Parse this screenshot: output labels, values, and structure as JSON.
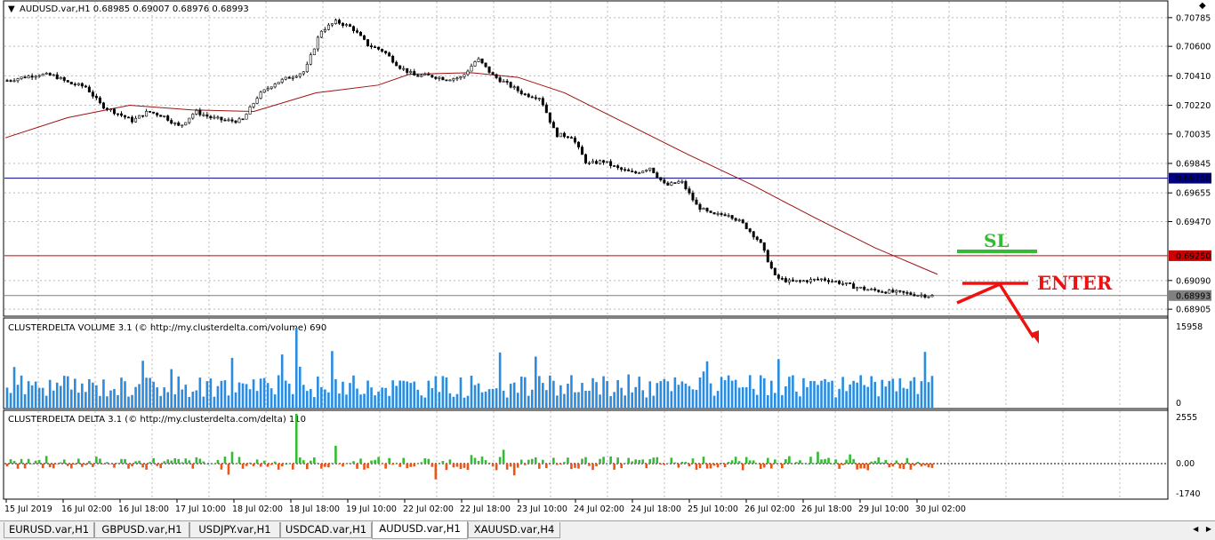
{
  "symbol_info": "AUDUSD.var,H1  0.68985 0.69007 0.68976 0.68993",
  "price_axis": [
    "0.70785",
    "0.70600",
    "0.70410",
    "0.70220",
    "0.70035",
    "0.69845",
    "0.69655",
    "0.69470",
    "0.69090",
    "0.68905"
  ],
  "hlines": [
    {
      "label": "0.69750",
      "value": 0.6975,
      "color": "#000080"
    },
    {
      "label": "0.69250",
      "value": 0.6925,
      "color": "#cc0000"
    },
    {
      "label": "0.68993",
      "value": 0.68993,
      "color": "#808080"
    }
  ],
  "annotations": {
    "sl": "SL",
    "enter": "ENTER"
  },
  "volume_panel": {
    "title": "CLUSTERDELTA VOLUME 3.1 (© http://my.clusterdelta.com/volume) 690",
    "max_label": "15958",
    "zero_label": "0"
  },
  "delta_panel": {
    "title": "CLUSTERDELTA DELTA 3.1 (© http://my.clusterdelta.com/delta) 110",
    "max_label": "2555",
    "zero_label": "0.00",
    "min_label": "-1740"
  },
  "time_axis": [
    "15 Jul 2019",
    "16 Jul 02:00",
    "16 Jul 18:00",
    "17 Jul 10:00",
    "18 Jul 02:00",
    "18 Jul 18:00",
    "19 Jul 10:00",
    "22 Jul 02:00",
    "22 Jul 18:00",
    "23 Jul 10:00",
    "24 Jul 02:00",
    "24 Jul 18:00",
    "25 Jul 10:00",
    "26 Jul 02:00",
    "26 Jul 18:00",
    "29 Jul 10:00",
    "30 Jul 02:00"
  ],
  "tabs": [
    {
      "label": "EURUSD.var,H1",
      "active": false
    },
    {
      "label": "GBPUSD.var,H1",
      "active": false
    },
    {
      "label": "USDJPY.var,H1",
      "active": false
    },
    {
      "label": "USDCAD.var,H1",
      "active": false
    },
    {
      "label": "AUDUSD.var,H1",
      "active": true
    },
    {
      "label": "XAUUSD.var,H4",
      "active": false
    }
  ],
  "chart_data": {
    "type": "candlestick",
    "symbol": "AUDUSD.var",
    "timeframe": "H1",
    "price_range": [
      0.6886,
      0.7083
    ],
    "price_close_path": [
      [
        0,
        0.7038
      ],
      [
        10,
        0.704
      ],
      [
        20,
        0.7042
      ],
      [
        30,
        0.7041
      ],
      [
        40,
        0.7036
      ],
      [
        50,
        0.7034
      ],
      [
        60,
        0.7022
      ],
      [
        70,
        0.7017
      ],
      [
        80,
        0.7012
      ],
      [
        90,
        0.7018
      ],
      [
        100,
        0.7015
      ],
      [
        110,
        0.7008
      ],
      [
        120,
        0.7018
      ],
      [
        130,
        0.7014
      ],
      [
        140,
        0.7012
      ],
      [
        150,
        0.7012
      ],
      [
        160,
        0.7028
      ],
      [
        170,
        0.7036
      ],
      [
        180,
        0.704
      ],
      [
        190,
        0.7044
      ],
      [
        200,
        0.707
      ],
      [
        210,
        0.7076
      ],
      [
        220,
        0.7072
      ],
      [
        230,
        0.7061
      ],
      [
        240,
        0.7057
      ],
      [
        250,
        0.7047
      ],
      [
        260,
        0.7041
      ],
      [
        270,
        0.7041
      ],
      [
        280,
        0.7039
      ],
      [
        290,
        0.704
      ],
      [
        300,
        0.7052
      ],
      [
        310,
        0.7041
      ],
      [
        320,
        0.7035
      ],
      [
        330,
        0.7029
      ],
      [
        340,
        0.7027
      ],
      [
        350,
        0.7003
      ],
      [
        360,
        0.7002
      ],
      [
        370,
        0.6984
      ],
      [
        380,
        0.6986
      ],
      [
        390,
        0.6981
      ],
      [
        400,
        0.6978
      ],
      [
        410,
        0.6982
      ],
      [
        420,
        0.697
      ],
      [
        430,
        0.6973
      ],
      [
        440,
        0.6957
      ],
      [
        450,
        0.6951
      ],
      [
        460,
        0.6952
      ],
      [
        470,
        0.6945
      ],
      [
        480,
        0.6934
      ],
      [
        490,
        0.6911
      ],
      [
        500,
        0.6908
      ],
      [
        510,
        0.6909
      ],
      [
        520,
        0.691
      ],
      [
        530,
        0.6908
      ],
      [
        540,
        0.6905
      ],
      [
        550,
        0.6903
      ],
      [
        560,
        0.6902
      ],
      [
        570,
        0.6901
      ],
      [
        580,
        0.69
      ],
      [
        590,
        0.6899
      ]
    ],
    "ma_path": [
      [
        0,
        0.7001
      ],
      [
        40,
        0.7014
      ],
      [
        80,
        0.7022
      ],
      [
        120,
        0.7019
      ],
      [
        160,
        0.7018
      ],
      [
        200,
        0.703
      ],
      [
        240,
        0.7035
      ],
      [
        260,
        0.7042
      ],
      [
        300,
        0.7043
      ],
      [
        330,
        0.704
      ],
      [
        360,
        0.703
      ],
      [
        400,
        0.701
      ],
      [
        440,
        0.699
      ],
      [
        480,
        0.6971
      ],
      [
        520,
        0.695
      ],
      [
        560,
        0.693
      ],
      [
        600,
        0.6913
      ]
    ],
    "volume_max": 15958,
    "delta_range": [
      -1740,
      2555
    ]
  }
}
